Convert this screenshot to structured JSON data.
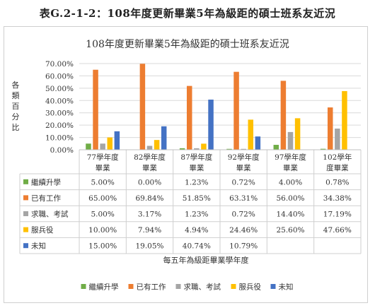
{
  "page_title": "表G.2-1-2：108年度更新畢業5年為級距的碩士班系友近況",
  "colors": {
    "繼續升學": "#70ad47",
    "已有工作": "#ed7d31",
    "求職、考試": "#a5a5a5",
    "服兵役": "#ffc000",
    "未知": "#4472c4"
  },
  "chart_data": {
    "type": "bar",
    "title": "108年度更新畢業5年為級距的碩士班系友近況",
    "ylabel": "各類百分比",
    "xlabel": "每五年為級距畢業學年度",
    "ylim": [
      0,
      70
    ],
    "y_ticks": [
      "0.00%",
      "10.00%",
      "20.00%",
      "30.00%",
      "40.00%",
      "50.00%",
      "60.00%",
      "70.00%"
    ],
    "grid": true,
    "legend_position": "bottom",
    "categories": [
      "77學年度畢業",
      "82學年度畢業",
      "87學年度畢業",
      "92學年度畢業",
      "97學年度畢業",
      "102學年度畢業"
    ],
    "category_labels": [
      [
        "77學年度",
        "畢業"
      ],
      [
        "82學年度",
        "畢業"
      ],
      [
        "87學年度",
        "畢業"
      ],
      [
        "92學年度",
        "畢業"
      ],
      [
        "97學年度",
        "畢業"
      ],
      [
        "102學年",
        "度畢業"
      ]
    ],
    "series": [
      {
        "name": "繼續升學",
        "values": [
          5.0,
          0.0,
          1.23,
          0.72,
          4.0,
          0.78
        ],
        "labels": [
          "5.00%",
          "0.00%",
          "1.23%",
          "0.72%",
          "4.00%",
          "0.78%"
        ]
      },
      {
        "name": "已有工作",
        "values": [
          65.0,
          69.84,
          51.85,
          63.31,
          56.0,
          34.38
        ],
        "labels": [
          "65.00%",
          "69.84%",
          "51.85%",
          "63.31%",
          "56.00%",
          "34.38%"
        ]
      },
      {
        "name": "求職、考試",
        "values": [
          5.0,
          3.17,
          1.23,
          0.72,
          14.4,
          17.19
        ],
        "labels": [
          "5.00%",
          "3.17%",
          "1.23%",
          "0.72%",
          "14.40%",
          "17.19%"
        ]
      },
      {
        "name": "服兵役",
        "values": [
          10.0,
          7.94,
          4.94,
          24.46,
          25.6,
          47.66
        ],
        "labels": [
          "10.00%",
          "7.94%",
          "4.94%",
          "24.46%",
          "25.60%",
          "47.66%"
        ]
      },
      {
        "name": "未知",
        "values": [
          15.0,
          19.05,
          40.74,
          10.79,
          null,
          null
        ],
        "labels": [
          "15.00%",
          "19.05%",
          "40.74%",
          "10.79%",
          "",
          ""
        ]
      }
    ]
  }
}
